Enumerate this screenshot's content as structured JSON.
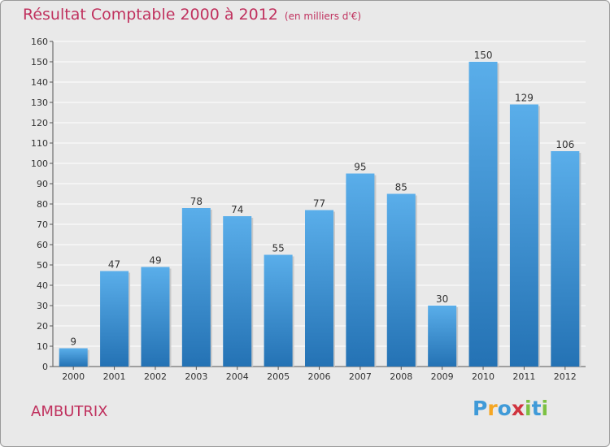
{
  "chart_data": {
    "type": "bar",
    "title": "Résultat Comptable 2000 à 2012",
    "subtitle": "(en milliers d'€)",
    "categories": [
      "2000",
      "2001",
      "2002",
      "2003",
      "2004",
      "2005",
      "2006",
      "2007",
      "2008",
      "2009",
      "2010",
      "2011",
      "2012"
    ],
    "values": [
      9,
      47,
      49,
      78,
      74,
      55,
      77,
      95,
      85,
      30,
      150,
      129,
      106
    ],
    "ylim": [
      0,
      160
    ],
    "yticks": [
      0,
      10,
      20,
      30,
      40,
      50,
      60,
      70,
      80,
      90,
      100,
      110,
      120,
      130,
      140,
      150,
      160
    ],
    "grid": true,
    "xlabel": "",
    "ylabel": ""
  },
  "commune": "AMBUTRIX",
  "brand": {
    "letters": [
      "P",
      "r",
      "o",
      "x",
      "i",
      "t",
      "i"
    ]
  },
  "colors": {
    "title": "#c0315e",
    "bar_top": "#5aaeea",
    "bar_bottom": "#2472b4",
    "grid": "#ffffff",
    "background": "#e9e9e9",
    "logo": [
      "#3f9ad8",
      "#f5a623",
      "#3f9ad8",
      "#d0343f",
      "#7cc142",
      "#3f9ad8",
      "#7cc142"
    ]
  }
}
